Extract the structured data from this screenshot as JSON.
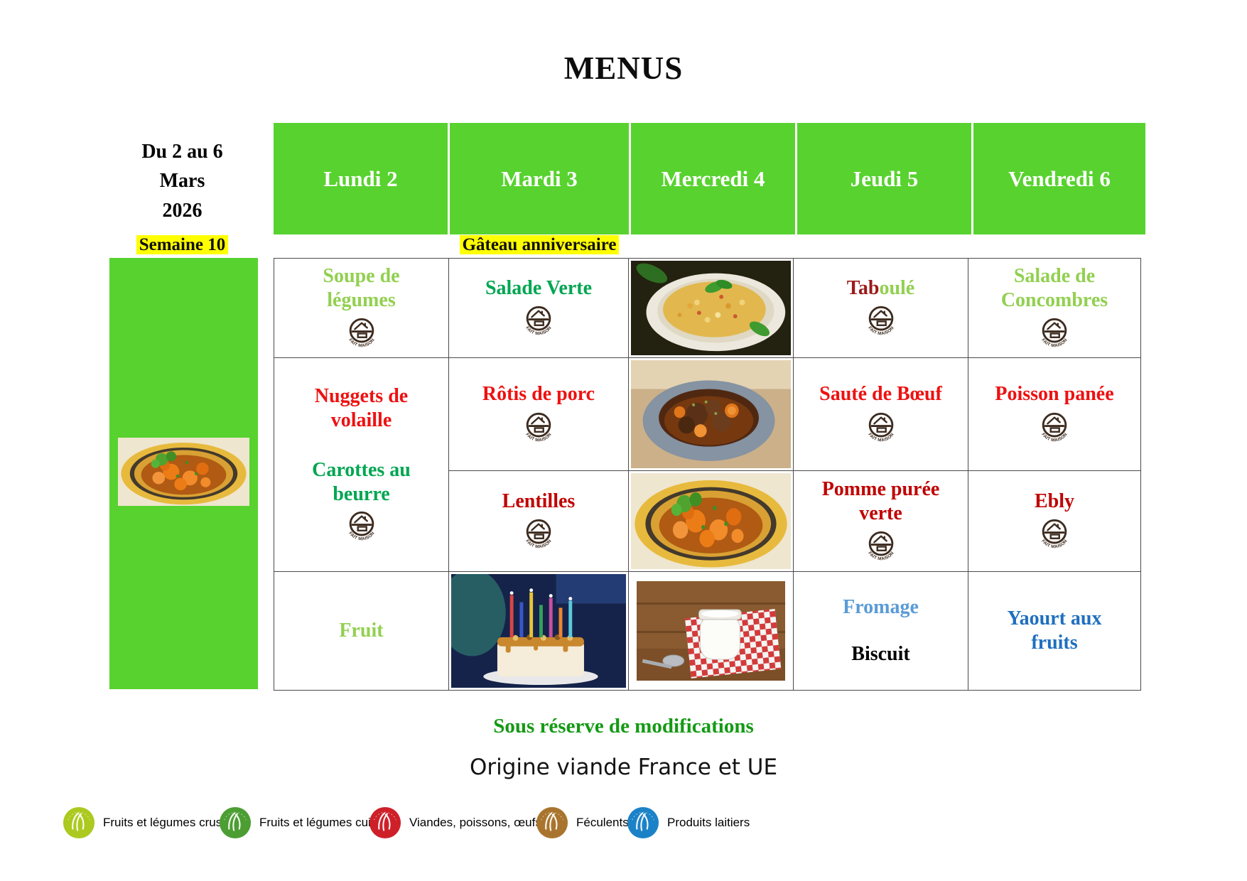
{
  "title": "MENUS",
  "sidebar": {
    "date_range": "Du 2 au 6\nMars\n2026",
    "week_label": "Semaine 10"
  },
  "days": {
    "mon": "Lundi 2",
    "tue": "Mardi 3",
    "wed": "Mercredi 4",
    "thu": "Jeudi 5",
    "fri": "Vendredi 6"
  },
  "banner": "Gâteau anniversaire",
  "fait_maison_label": "FAIT MAISON",
  "menu": {
    "mon": {
      "starter": "Soupe de\nlégumes",
      "main": "Nuggets de\nvolaille",
      "side": "Carottes au\nbeurre",
      "dessert": "Fruit"
    },
    "tue": {
      "starter": "Salade Verte",
      "main": "Rôtis de porc",
      "side": "Lentilles"
    },
    "thu": {
      "starter_part_red": "Tab",
      "starter_part_green": "oulé",
      "main": "Sauté de Bœuf",
      "side": "Pomme purée\nverte",
      "dessert_top": "Fromage",
      "dessert_bottom": "Biscuit"
    },
    "fri": {
      "starter": "Salade de\nConcombres",
      "main": "Poisson panée",
      "side": "Ebly",
      "dessert": "Yaourt aux\nfruits"
    }
  },
  "footer": {
    "note": "Sous réserve de modifications",
    "origin": "Origine viande France et UE"
  },
  "legend": [
    {
      "label": "Fruits et légumes crus",
      "color": "#ACC91F"
    },
    {
      "label": "Fruits et légumes cuits",
      "color": "#4C9E33"
    },
    {
      "label": "Viandes, poissons, œufs",
      "color": "#CE2029"
    },
    {
      "label": "Féculents",
      "color": "#A9752E"
    },
    {
      "label": "Produits laitiers",
      "color": "#1C82C8"
    }
  ],
  "colors": {
    "header_green": "#58D22F",
    "highlight_yellow": "#FFFF00",
    "light_green_text": "#92D050",
    "green_text": "#00A651",
    "bright_red_text": "#EE1111",
    "dark_red_text": "#C00000",
    "maroon_text": "#9C1A1A",
    "light_blue_text": "#5B9BD5",
    "blue_text": "#1F6FBF",
    "note_green": "#149A14",
    "fait_maison_brown": "#3D2B1F",
    "border_gray": "#4A4A4A"
  }
}
